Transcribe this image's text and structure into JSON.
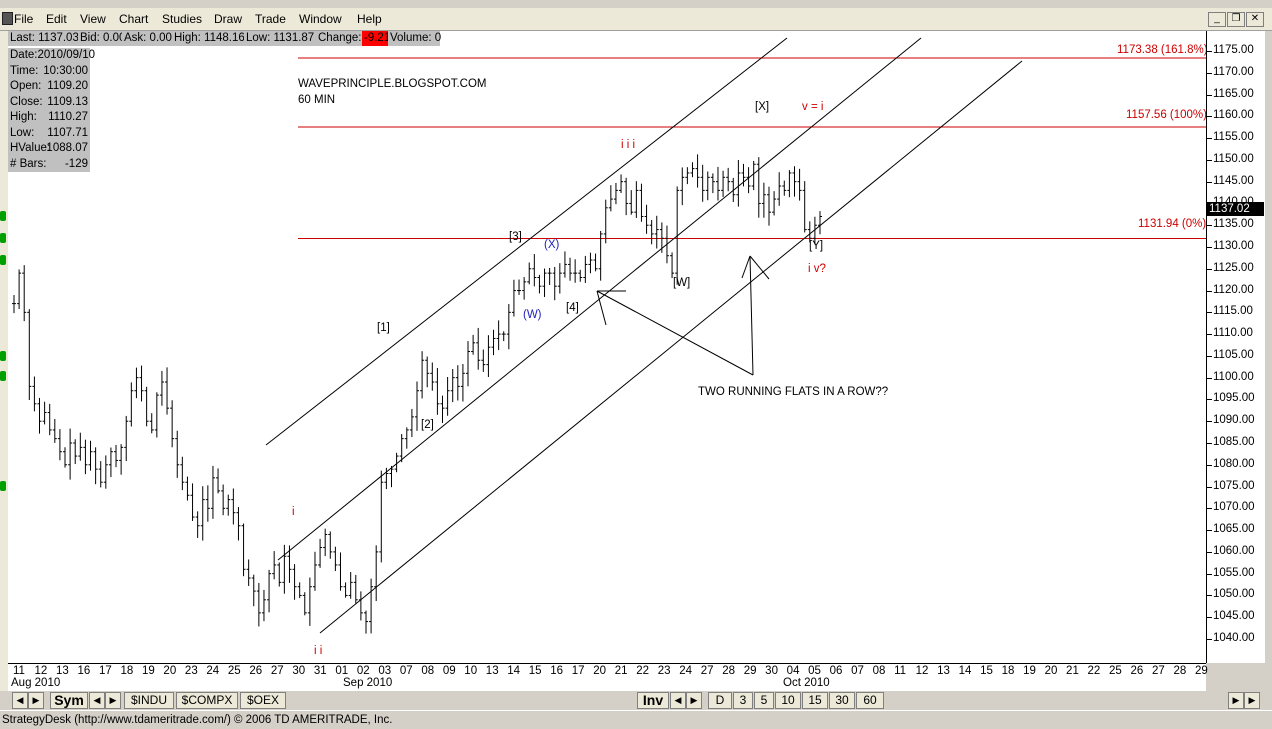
{
  "menu": {
    "items": [
      "File",
      "Edit",
      "View",
      "Chart",
      "Studies",
      "Draw",
      "Trade",
      "Window",
      "Help"
    ],
    "window_buttons": [
      "_",
      "❐",
      "✕"
    ]
  },
  "quote": {
    "last": "Last: 1137.03",
    "bid": "Bid: 0.00",
    "ask": "Ask: 0.00",
    "high": "High: 1148.16",
    "low": "Low: 1131.87",
    "change_label": "Change:",
    "change_value": "-9.21",
    "volume": "Volume: 0"
  },
  "bar_info": [
    {
      "label": "Date:2010/09/10",
      "value": ""
    },
    {
      "label": "Time:",
      "value": "10:30:00"
    },
    {
      "label": "Open:",
      "value": "1109.20"
    },
    {
      "label": "Close:",
      "value": "1109.13"
    },
    {
      "label": "High:",
      "value": "1110.27"
    },
    {
      "label": "Low:",
      "value": "1107.71"
    },
    {
      "label": "HValue:",
      "value": "1088.07"
    },
    {
      "label": "# Bars:",
      "value": "-129"
    }
  ],
  "chart_data": {
    "type": "candlestick",
    "title": "WAVEPRINCIPLE.BLOGSPOT.COM",
    "subtitle": "60 MIN",
    "ylim": [
      1036,
      1180
    ],
    "y_ticks": [
      "1175.00",
      "1170.00",
      "1165.00",
      "1160.00",
      "1155.00",
      "1150.00",
      "1145.00",
      "1140.00",
      "1135.00",
      "1130.00",
      "1125.00",
      "1120.00",
      "1115.00",
      "1110.00",
      "1105.00",
      "1100.00",
      "1095.00",
      "1090.00",
      "1085.00",
      "1080.00",
      "1075.00",
      "1070.00",
      "1065.00",
      "1060.00",
      "1055.00",
      "1050.00",
      "1045.00",
      "1040.00"
    ],
    "x_labels": [
      "11",
      "12",
      "13",
      "16",
      "17",
      "18",
      "19",
      "20",
      "23",
      "24",
      "25",
      "26",
      "27",
      "30",
      "31",
      "01",
      "02",
      "03",
      "07",
      "08",
      "09",
      "10",
      "13",
      "14",
      "15",
      "16",
      "17",
      "20",
      "21",
      "22",
      "23",
      "24",
      "27",
      "28",
      "29",
      "30",
      "04",
      "05",
      "06",
      "07",
      "08",
      "11",
      "12",
      "13",
      "14",
      "15",
      "18",
      "19",
      "20",
      "21",
      "22",
      "25",
      "26",
      "27",
      "28",
      "29"
    ],
    "x_months": [
      "Aug 2010",
      "Sep 2010",
      "Oct 2010"
    ],
    "last_price": "1137.02",
    "price_path": [
      [
        0,
        1117
      ],
      [
        1,
        1124
      ],
      [
        2,
        1115
      ],
      [
        3,
        1098
      ],
      [
        4,
        1094
      ],
      [
        5,
        1090
      ],
      [
        6,
        1092
      ],
      [
        7,
        1088
      ],
      [
        8,
        1086
      ],
      [
        9,
        1083
      ],
      [
        10,
        1080
      ],
      [
        11,
        1085
      ],
      [
        12,
        1082
      ],
      [
        13,
        1084
      ],
      [
        14,
        1080
      ],
      [
        15,
        1083
      ],
      [
        16,
        1079
      ],
      [
        17,
        1076
      ],
      [
        18,
        1080
      ],
      [
        19,
        1083
      ],
      [
        20,
        1081
      ],
      [
        21,
        1084
      ],
      [
        22,
        1090
      ],
      [
        23,
        1097
      ],
      [
        24,
        1100
      ],
      [
        25,
        1097
      ],
      [
        26,
        1090
      ],
      [
        27,
        1088
      ],
      [
        28,
        1096
      ],
      [
        29,
        1099
      ],
      [
        30,
        1093
      ],
      [
        31,
        1086
      ],
      [
        32,
        1080
      ],
      [
        33,
        1076
      ],
      [
        34,
        1073
      ],
      [
        35,
        1068
      ],
      [
        36,
        1066
      ],
      [
        37,
        1072
      ],
      [
        38,
        1070
      ],
      [
        39,
        1077
      ],
      [
        40,
        1074
      ],
      [
        41,
        1070
      ],
      [
        42,
        1072
      ],
      [
        43,
        1069
      ],
      [
        44,
        1066
      ],
      [
        45,
        1056
      ],
      [
        46,
        1054
      ],
      [
        47,
        1051
      ],
      [
        48,
        1046
      ],
      [
        49,
        1049
      ],
      [
        50,
        1055
      ],
      [
        51,
        1057
      ],
      [
        52,
        1053
      ],
      [
        53,
        1059
      ],
      [
        54,
        1056
      ],
      [
        55,
        1052
      ],
      [
        56,
        1050
      ],
      [
        57,
        1046
      ],
      [
        58,
        1052
      ],
      [
        59,
        1057
      ],
      [
        60,
        1061
      ],
      [
        61,
        1064
      ],
      [
        62,
        1060
      ],
      [
        63,
        1057
      ],
      [
        64,
        1052
      ],
      [
        65,
        1050
      ],
      [
        66,
        1053
      ],
      [
        67,
        1049
      ],
      [
        68,
        1046
      ],
      [
        69,
        1044
      ],
      [
        70,
        1052
      ],
      [
        71,
        1060
      ],
      [
        72,
        1076
      ],
      [
        73,
        1078
      ],
      [
        74,
        1079
      ],
      [
        75,
        1082
      ],
      [
        76,
        1086
      ],
      [
        77,
        1088
      ],
      [
        78,
        1091
      ],
      [
        79,
        1097
      ],
      [
        80,
        1104
      ],
      [
        81,
        1101
      ],
      [
        82,
        1099
      ],
      [
        83,
        1094
      ],
      [
        84,
        1093
      ],
      [
        85,
        1097
      ],
      [
        86,
        1100
      ],
      [
        87,
        1098
      ],
      [
        88,
        1101
      ],
      [
        89,
        1106
      ],
      [
        90,
        1108
      ],
      [
        91,
        1104
      ],
      [
        92,
        1103
      ],
      [
        93,
        1107
      ],
      [
        94,
        1109
      ],
      [
        95,
        1110
      ],
      [
        96,
        1110
      ],
      [
        97,
        1115
      ],
      [
        98,
        1120
      ],
      [
        99,
        1120
      ],
      [
        100,
        1122
      ],
      [
        101,
        1125
      ],
      [
        102,
        1123
      ],
      [
        103,
        1121
      ],
      [
        104,
        1124
      ],
      [
        105,
        1124
      ],
      [
        106,
        1121
      ],
      [
        107,
        1124
      ],
      [
        108,
        1126
      ],
      [
        109,
        1124
      ],
      [
        110,
        1124
      ],
      [
        111,
        1123
      ],
      [
        112,
        1126
      ],
      [
        113,
        1127
      ],
      [
        114,
        1125
      ],
      [
        115,
        1133
      ],
      [
        116,
        1139
      ],
      [
        117,
        1141
      ],
      [
        118,
        1143
      ],
      [
        119,
        1145
      ],
      [
        120,
        1140
      ],
      [
        121,
        1138
      ],
      [
        122,
        1143
      ],
      [
        123,
        1137
      ],
      [
        124,
        1135
      ],
      [
        125,
        1133
      ],
      [
        126,
        1134
      ],
      [
        127,
        1132
      ],
      [
        128,
        1128
      ],
      [
        129,
        1124
      ],
      [
        130,
        1143
      ],
      [
        131,
        1146
      ],
      [
        132,
        1147
      ],
      [
        133,
        1148
      ],
      [
        134,
        1146
      ],
      [
        135,
        1143
      ],
      [
        136,
        1146
      ],
      [
        137,
        1145
      ],
      [
        138,
        1143
      ],
      [
        139,
        1146
      ],
      [
        140,
        1145
      ],
      [
        141,
        1142
      ],
      [
        142,
        1147
      ],
      [
        143,
        1146
      ],
      [
        144,
        1144
      ],
      [
        145,
        1149
      ],
      [
        146,
        1140
      ],
      [
        147,
        1142
      ],
      [
        148,
        1138
      ],
      [
        149,
        1141
      ],
      [
        150,
        1144
      ],
      [
        151,
        1143
      ],
      [
        152,
        1147
      ],
      [
        153,
        1145
      ],
      [
        154,
        1143
      ],
      [
        155,
        1134
      ],
      [
        156,
        1132
      ],
      [
        157,
        1135
      ],
      [
        158,
        1137
      ]
    ],
    "horizontal_levels": [
      {
        "price": 1173.38,
        "label": "1173.38 (161.8%)"
      },
      {
        "price": 1157.56,
        "label": "1157.56 (100%)"
      },
      {
        "price": 1131.94,
        "label": "1131.94 (0%)"
      }
    ],
    "channel_lines": [
      {
        "x1": 266,
        "y1": 445,
        "x2": 787,
        "y2": 38
      },
      {
        "x1": 278,
        "y1": 560,
        "x2": 921,
        "y2": 38
      },
      {
        "x1": 320,
        "y1": 633,
        "x2": 1022,
        "y2": 61
      }
    ],
    "annotations": [
      {
        "text": "[1]",
        "color": "black"
      },
      {
        "text": "[2]",
        "color": "black"
      },
      {
        "text": "[3]",
        "color": "black"
      },
      {
        "text": "[4]",
        "color": "black"
      },
      {
        "text": "(W)",
        "color": "blue"
      },
      {
        "text": "(X)",
        "color": "blue"
      },
      {
        "text": "[W]",
        "color": "black"
      },
      {
        "text": "[X]",
        "color": "black"
      },
      {
        "text": "[Y]",
        "color": "black"
      },
      {
        "text": "i",
        "color": "red"
      },
      {
        "text": "i i",
        "color": "red"
      },
      {
        "text": "i i i",
        "color": "red"
      },
      {
        "text": "i v?",
        "color": "red"
      },
      {
        "text": "v = i",
        "color": "red"
      },
      {
        "text": "TWO RUNNING FLATS IN A ROW??",
        "color": "black"
      }
    ]
  },
  "tabs": {
    "left": [
      "Sym",
      "$INDU",
      "$COMPX",
      "$OEX"
    ],
    "right": [
      "Inv",
      "D",
      "3",
      "5",
      "10",
      "15",
      "30",
      "60"
    ],
    "arrows": [
      "◀",
      "▶"
    ]
  },
  "status": {
    "text": "StrategyDesk (http://www.tdameritrade.com/) © 2006 TD AMERITRADE, Inc."
  }
}
